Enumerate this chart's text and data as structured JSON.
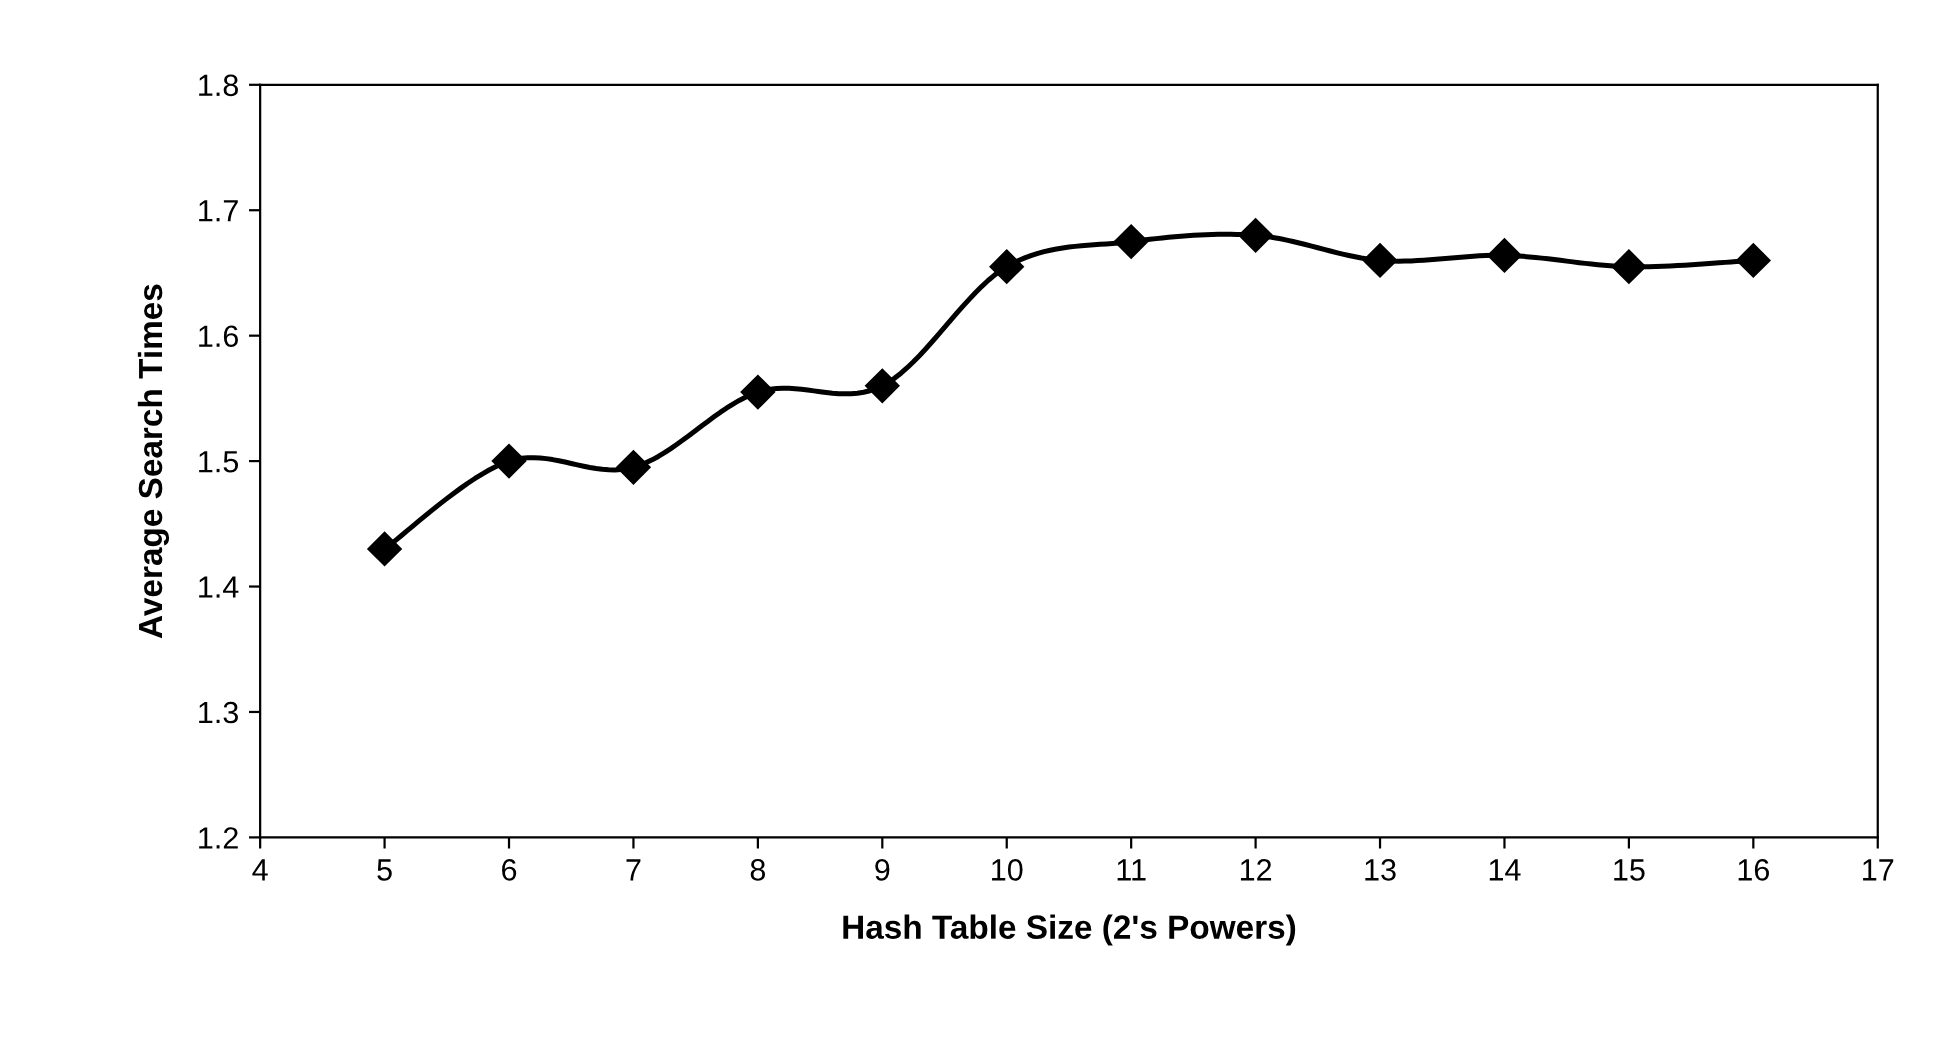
{
  "chart_data": {
    "type": "line",
    "xlabel": "Hash Table Size (2's Powers)",
    "ylabel": "Average Search Times",
    "x": [
      5,
      6,
      7,
      8,
      9,
      10,
      11,
      12,
      13,
      14,
      15,
      16
    ],
    "series": [
      {
        "color": "#000000",
        "values": [
          1.43,
          1.5,
          1.495,
          1.555,
          1.56,
          1.655,
          1.675,
          1.68,
          1.66,
          1.664,
          1.655,
          1.66
        ]
      }
    ],
    "xlim": [
      4,
      17
    ],
    "xticks": [
      4,
      5,
      6,
      7,
      8,
      9,
      10,
      11,
      12,
      13,
      14,
      15,
      16,
      17
    ],
    "ylim": [
      1.2,
      1.8
    ],
    "yticks": [
      {
        "value": 1.2,
        "label": "1.2"
      },
      {
        "value": 1.3,
        "label": "1.3"
      },
      {
        "value": 1.4,
        "label": "1.4"
      },
      {
        "value": 1.5,
        "label": "1.5"
      },
      {
        "value": 1.6,
        "label": "1.6"
      },
      {
        "value": 1.7,
        "label": "1.7"
      },
      {
        "value": 1.8,
        "label": "1.8"
      }
    ],
    "marker": "diamond",
    "line_style": "solid",
    "grid": false,
    "legend": false
  }
}
